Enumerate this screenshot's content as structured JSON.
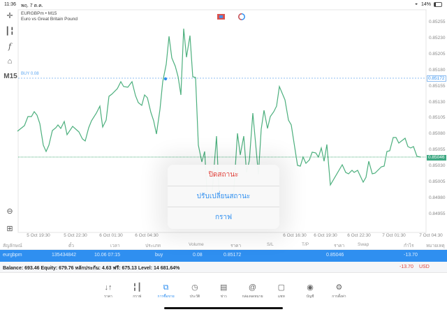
{
  "status_bar": {
    "time": "11:36",
    "date": "พฤ. 7 ต.ค.",
    "battery": "14%"
  },
  "chart": {
    "symbol": "EURGBPm • M15",
    "description": "Euro vs Great Britain Pound",
    "timeframe": "M15",
    "order_line_label": "BUY 0.08",
    "order_price": "0.85172",
    "current_price": "0.85046",
    "y_ticks": [
      "0.85255",
      "0.85230",
      "0.85205",
      "0.85180",
      "0.85155",
      "0.85130",
      "0.85105",
      "0.85080",
      "0.85055",
      "0.85030",
      "0.85005",
      "0.84980",
      "0.84955"
    ],
    "x_ticks": [
      "5 Oct 19:30",
      "5 Oct 22:30",
      "6 Oct 01:30",
      "6 Oct 04:30",
      "6 Oct 16:30",
      "6 Oct 19:30",
      "6 Oct 22:30",
      "7 Oct 01:30",
      "7 Oct 04:30"
    ],
    "line_color": "#4caf7d",
    "order_color": "#2f8ff0"
  },
  "popup": {
    "close": "ปิดสถานะ",
    "modify": "ปรับเปลี่ยนสถานะ",
    "chart": "กราฟ"
  },
  "table": {
    "headers": [
      "สัญลักษณ์",
      "ตั๋ว",
      "เวลา",
      "ประเภท",
      "Volume",
      "ราคา",
      "S/L",
      "T/P",
      "ราคา",
      "Swap",
      "กำไร",
      "หมายเหตุ"
    ],
    "row": {
      "symbol": "eurgbpm",
      "ticket": "135434842",
      "time": "10.06 07:15",
      "type": "buy",
      "volume": "0.08",
      "open_price": "0.85172",
      "price": "0.85046",
      "profit": "-13.70"
    },
    "summary": "Balance: 693.46 Equity: 679.76 หลักประกัน: 4.63 ฟรี: 675.13 Level: 14 681.64%",
    "total_profit": "-13.70",
    "currency": "USD"
  },
  "nav": [
    {
      "label": "ราคา",
      "icon": "quotes-icon"
    },
    {
      "label": "กราฟ",
      "icon": "chart-icon"
    },
    {
      "label": "การซื้อขาย",
      "icon": "trade-icon",
      "active": true
    },
    {
      "label": "ประวัติ",
      "icon": "history-icon"
    },
    {
      "label": "ข่าว",
      "icon": "news-icon"
    },
    {
      "label": "กล่องจดหมาย",
      "icon": "mailbox-icon"
    },
    {
      "label": "แชท",
      "icon": "chat-icon"
    },
    {
      "label": "บัญชี",
      "icon": "account-icon"
    },
    {
      "label": "การตั้งค่า",
      "icon": "settings-icon"
    }
  ]
}
